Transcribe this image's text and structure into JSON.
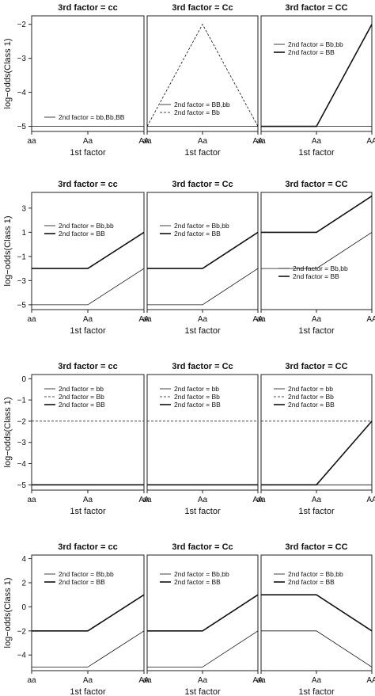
{
  "chart_data": [
    {
      "type": "line",
      "x_label": "1st factor",
      "y_label": "log−odds(Class 1)",
      "x_ticks": [
        "aa",
        "Aa",
        "AA"
      ],
      "y_ticks": [
        "−5",
        "−4",
        "−3",
        "−2"
      ],
      "ylim": [
        -5.15,
        -1.75
      ],
      "panels": [
        {
          "title": "3rd factor = cc",
          "legend_position": "bottom-left",
          "series": [
            {
              "name": "2nd factor = bb,Bb,BB",
              "style": "solid",
              "width": "thin",
              "values": [
                -5,
                -5,
                -5
              ]
            }
          ]
        },
        {
          "title": "3rd factor = Cc",
          "legend_position": "bottom-left",
          "series": [
            {
              "name": "2nd factor = BB,bb",
              "style": "solid",
              "width": "thin",
              "values": [
                -5,
                -5,
                -5
              ]
            },
            {
              "name": "2nd factor = Bb",
              "style": "dashed",
              "width": "thin",
              "values": [
                -5,
                -2,
                -5
              ]
            }
          ]
        },
        {
          "title": "3rd factor = CC",
          "legend_position": "top-left",
          "series": [
            {
              "name": "2nd factor = Bb,bb",
              "style": "solid",
              "width": "thin",
              "values": [
                -5,
                -5,
                -5
              ]
            },
            {
              "name": "2nd factor = BB",
              "style": "solid",
              "width": "thick",
              "values": [
                -5,
                -5,
                -2
              ]
            }
          ]
        }
      ]
    },
    {
      "type": "line",
      "x_label": "1st factor",
      "y_label": "log−odds(Class 1)",
      "x_ticks": [
        "aa",
        "Aa",
        "AA"
      ],
      "y_ticks": [
        "−5",
        "−3",
        "−1",
        "1",
        "3"
      ],
      "ylim": [
        -5.4,
        4.3
      ],
      "panels": [
        {
          "title": "3rd factor = cc",
          "legend_position": "top-left",
          "series": [
            {
              "name": "2nd factor = Bb,bb",
              "style": "solid",
              "width": "thin",
              "values": [
                -5,
                -5,
                -2
              ]
            },
            {
              "name": "2nd factor = BB",
              "style": "solid",
              "width": "thick",
              "values": [
                -2,
                -2,
                1
              ]
            }
          ]
        },
        {
          "title": "3rd factor = Cc",
          "legend_position": "top-left",
          "series": [
            {
              "name": "2nd factor = Bb,bb",
              "style": "solid",
              "width": "thin",
              "values": [
                -5,
                -5,
                -2
              ]
            },
            {
              "name": "2nd factor = BB",
              "style": "solid",
              "width": "thick",
              "values": [
                -2,
                -2,
                1
              ]
            }
          ]
        },
        {
          "title": "3rd factor = CC",
          "legend_position": "bottom-center",
          "series": [
            {
              "name": "2nd factor = Bb,bb",
              "style": "solid",
              "width": "thin",
              "values": [
                -2,
                -2,
                1
              ]
            },
            {
              "name": "2nd factor = BB",
              "style": "solid",
              "width": "thick",
              "values": [
                1,
                1,
                4
              ]
            }
          ]
        }
      ]
    },
    {
      "type": "line",
      "x_label": "1st factor",
      "y_label": "log−odds(Class 1)",
      "x_ticks": [
        "aa",
        "Aa",
        "AA"
      ],
      "y_ticks": [
        "−5",
        "−4",
        "−3",
        "−2",
        "−1",
        "0"
      ],
      "ylim": [
        -5.25,
        0.2
      ],
      "panels": [
        {
          "title": "3rd factor = cc",
          "legend_position": "top-left",
          "series": [
            {
              "name": "2nd factor = bb",
              "style": "solid",
              "width": "thin",
              "values": [
                -5,
                -5,
                -5
              ]
            },
            {
              "name": "2nd factor = Bb",
              "style": "dashed",
              "width": "thin",
              "values": [
                -2,
                -2,
                -2
              ]
            },
            {
              "name": "2nd factor = BB",
              "style": "solid",
              "width": "thick",
              "values": [
                -5,
                -5,
                -5
              ]
            }
          ]
        },
        {
          "title": "3rd factor = Cc",
          "legend_position": "top-left",
          "series": [
            {
              "name": "2nd factor = bb",
              "style": "solid",
              "width": "thin",
              "values": [
                -5,
                -5,
                -5
              ]
            },
            {
              "name": "2nd factor = Bb",
              "style": "dashed",
              "width": "thin",
              "values": [
                -2,
                -2,
                -2
              ]
            },
            {
              "name": "2nd factor = BB",
              "style": "solid",
              "width": "thick",
              "values": [
                -5,
                -5,
                -5
              ]
            }
          ]
        },
        {
          "title": "3rd factor = CC",
          "legend_position": "top-left",
          "series": [
            {
              "name": "2nd factor = bb",
              "style": "solid",
              "width": "thin",
              "values": [
                -5,
                -5,
                -5
              ]
            },
            {
              "name": "2nd factor = Bb",
              "style": "dashed",
              "width": "thin",
              "values": [
                -2,
                -2,
                -2
              ]
            },
            {
              "name": "2nd factor = BB",
              "style": "solid",
              "width": "thick",
              "values": [
                -5,
                -5,
                -2
              ]
            }
          ]
        }
      ]
    },
    {
      "type": "line",
      "x_label": "1st factor",
      "y_label": "log−odds(Class 1)",
      "x_ticks": [
        "aa",
        "Aa",
        "AA"
      ],
      "y_ticks": [
        "−4",
        "−2",
        "0",
        "2",
        "4"
      ],
      "ylim": [
        -5.3,
        4.3
      ],
      "panels": [
        {
          "title": "3rd factor = cc",
          "legend_position": "top-left",
          "series": [
            {
              "name": "2nd factor = Bb,bb",
              "style": "solid",
              "width": "thin",
              "values": [
                -5,
                -5,
                -2
              ]
            },
            {
              "name": "2nd factor = BB",
              "style": "solid",
              "width": "thick",
              "values": [
                -2,
                -2,
                1
              ]
            }
          ]
        },
        {
          "title": "3rd factor = Cc",
          "legend_position": "top-left",
          "series": [
            {
              "name": "2nd factor = Bb,bb",
              "style": "solid",
              "width": "thin",
              "values": [
                -5,
                -5,
                -2
              ]
            },
            {
              "name": "2nd factor = BB",
              "style": "solid",
              "width": "thick",
              "values": [
                -2,
                -2,
                1
              ]
            }
          ]
        },
        {
          "title": "3rd factor = CC",
          "legend_position": "top-left",
          "series": [
            {
              "name": "2nd factor = Bb,bb",
              "style": "solid",
              "width": "thin",
              "values": [
                -2,
                -2,
                -5
              ]
            },
            {
              "name": "2nd factor = BB",
              "style": "solid",
              "width": "thick",
              "values": [
                1,
                1,
                -2
              ]
            }
          ]
        }
      ]
    }
  ]
}
